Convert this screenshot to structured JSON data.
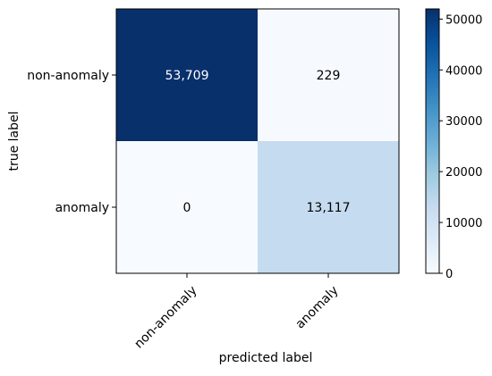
{
  "chart_data": {
    "type": "heatmap",
    "title": "",
    "xlabel": "predicted label",
    "ylabel": "true label",
    "x_categories": [
      "non-anomaly",
      "anomaly"
    ],
    "y_categories": [
      "non-anomaly",
      "anomaly"
    ],
    "values": [
      [
        53709,
        229
      ],
      [
        0,
        13117
      ]
    ],
    "cell_labels": [
      [
        "53,709",
        "229"
      ],
      [
        "0",
        "13,117"
      ]
    ],
    "colormap": "Blues",
    "color_range": [
      0,
      52000
    ],
    "colorbar": {
      "ticks": [
        0,
        10000,
        20000,
        30000,
        40000,
        50000
      ],
      "tick_labels": [
        "0",
        "10000",
        "20000",
        "30000",
        "40000",
        "50000"
      ]
    },
    "grid": false
  }
}
